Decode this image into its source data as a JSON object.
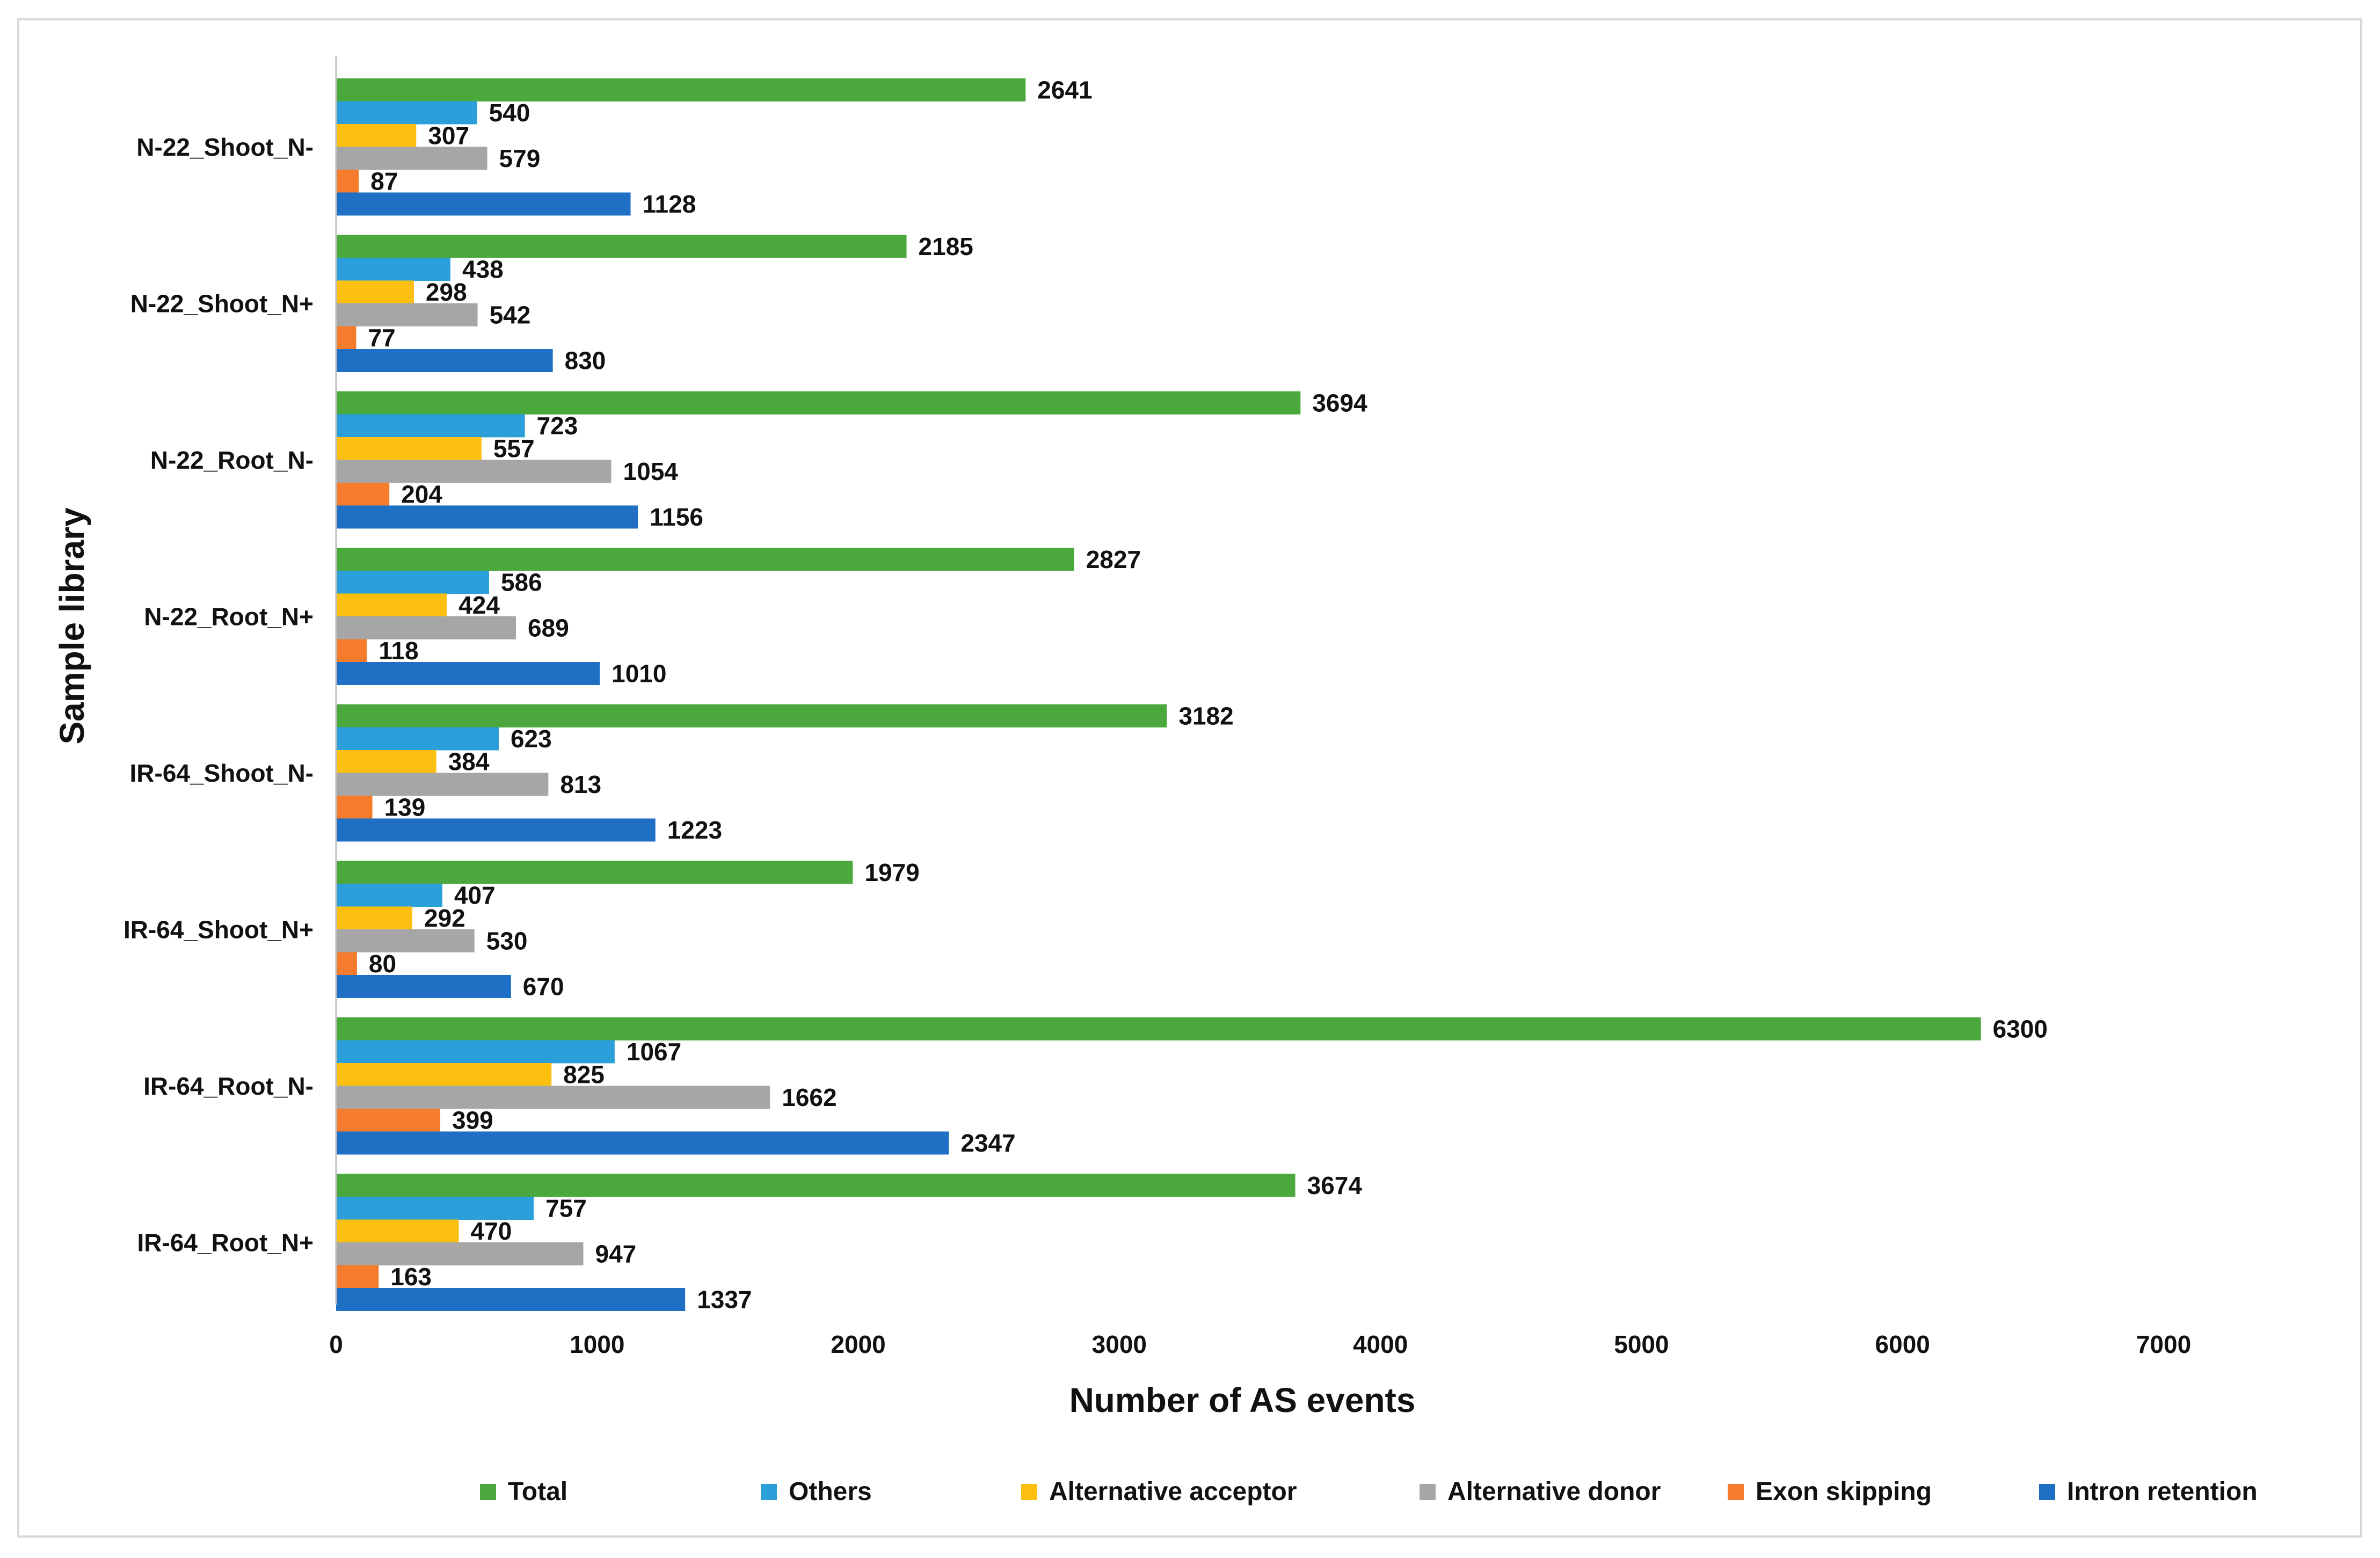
{
  "chart_data": {
    "type": "bar",
    "orientation": "horizontal",
    "title": "",
    "xlabel": "Number of AS events",
    "ylabel": "Sample  library",
    "xlim": [
      0,
      7000
    ],
    "xticks": [
      0,
      1000,
      2000,
      3000,
      4000,
      5000,
      6000,
      7000
    ],
    "grid": false,
    "legend_position": "bottom",
    "categories": [
      "N-22_Shoot_N-",
      "N-22_Shoot_N+",
      "N-22_Root_N-",
      "N-22_Root_N+",
      "IR-64_Shoot_N-",
      "IR-64_Shoot_N+",
      "IR-64_Root_N-",
      "IR-64_Root_N+"
    ],
    "series": [
      {
        "name": "Total",
        "color": "#4aa83c",
        "values": [
          2641,
          2185,
          3694,
          2827,
          3182,
          1979,
          6300,
          3674
        ]
      },
      {
        "name": "Others",
        "color": "#2b9fd9",
        "values": [
          540,
          438,
          723,
          586,
          623,
          407,
          1067,
          757
        ]
      },
      {
        "name": "Alternative acceptor",
        "color": "#fdc010",
        "values": [
          307,
          298,
          557,
          424,
          384,
          292,
          825,
          470
        ]
      },
      {
        "name": "Alternative donor",
        "color": "#a6a6a6",
        "values": [
          579,
          542,
          1054,
          689,
          813,
          530,
          1662,
          947
        ]
      },
      {
        "name": "Exon skipping",
        "color": "#f47c2c",
        "values": [
          87,
          77,
          204,
          118,
          139,
          80,
          399,
          163
        ]
      },
      {
        "name": "Intron retention",
        "color": "#1f6fc5",
        "values": [
          1128,
          830,
          1156,
          1010,
          1223,
          670,
          2347,
          1337
        ]
      }
    ]
  }
}
